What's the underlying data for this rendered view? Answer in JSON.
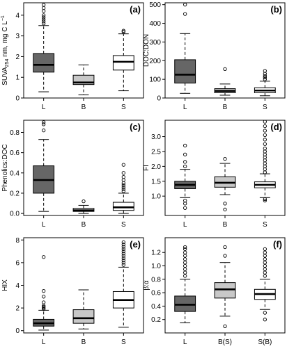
{
  "figure_colors": {
    "L": "#666666",
    "B": "#c8c8c8",
    "S": "#ffffff"
  },
  "chart_data": [
    {
      "type": "box",
      "panel": "(a)",
      "ylabel": "SUVA254 nm, mg C L−1",
      "ylabel_parts": {
        "main": "SUVA",
        "sub": "254",
        "mid": " nm, mg C L",
        "sup": "−1"
      },
      "ylim": [
        0,
        4.6
      ],
      "yticks": [
        0,
        1,
        2,
        3,
        4
      ],
      "grid": false,
      "categories": [
        "L",
        "B",
        "S"
      ],
      "boxes": [
        {
          "name": "L",
          "color": "#666666",
          "lower": 0.3,
          "q1": 1.25,
          "median": 1.6,
          "q3": 2.15,
          "upper": 3.5,
          "outliers": [
            3.6,
            3.7,
            3.8,
            3.9,
            4.0,
            4.2,
            4.35,
            4.5
          ]
        },
        {
          "name": "B",
          "color": "#c8c8c8",
          "lower": 0.15,
          "q1": 0.65,
          "median": 0.75,
          "q3": 1.1,
          "upper": 1.6,
          "outliers": []
        },
        {
          "name": "S",
          "color": "#ffffff",
          "lower": 0.35,
          "q1": 1.35,
          "median": 1.75,
          "q3": 2.05,
          "upper": 3.1,
          "outliers": [
            3.2,
            3.25
          ]
        }
      ]
    },
    {
      "type": "box",
      "panel": "(b)",
      "ylabel": "DOC:DON",
      "ylim": [
        0,
        510
      ],
      "yticks": [
        0,
        100,
        200,
        300,
        400,
        500
      ],
      "grid": false,
      "categories": [
        "L",
        "B",
        "S"
      ],
      "boxes": [
        {
          "name": "L",
          "color": "#666666",
          "lower": 25,
          "q1": 80,
          "median": 125,
          "q3": 205,
          "upper": 345,
          "outliers": [
            450,
            500
          ]
        },
        {
          "name": "B",
          "color": "#c8c8c8",
          "lower": 15,
          "q1": 28,
          "median": 38,
          "q3": 50,
          "upper": 75,
          "outliers": [
            155
          ]
        },
        {
          "name": "S",
          "color": "#ffffff",
          "lower": 12,
          "q1": 28,
          "median": 40,
          "q3": 55,
          "upper": 90,
          "outliers": [
            100,
            110,
            118,
            130,
            145
          ]
        }
      ]
    },
    {
      "type": "box",
      "panel": "(c)",
      "ylabel": "Phenolics:DOC",
      "ylim": [
        -0.02,
        0.92
      ],
      "yticks": [
        0.0,
        0.2,
        0.4,
        0.6,
        0.8
      ],
      "grid": false,
      "categories": [
        "L",
        "B",
        "S"
      ],
      "boxes": [
        {
          "name": "L",
          "color": "#666666",
          "lower": 0.02,
          "q1": 0.2,
          "median": 0.33,
          "q3": 0.47,
          "upper": 0.73,
          "outliers": [
            0.82,
            0.88,
            0.9
          ]
        },
        {
          "name": "B",
          "color": "#c8c8c8",
          "lower": 0.0,
          "q1": 0.02,
          "median": 0.03,
          "q3": 0.05,
          "upper": 0.08,
          "outliers": [
            0.12
          ]
        },
        {
          "name": "S",
          "color": "#ffffff",
          "lower": 0.0,
          "q1": 0.03,
          "median": 0.06,
          "q3": 0.11,
          "upper": 0.2,
          "outliers": [
            0.22,
            0.24,
            0.26,
            0.28,
            0.3,
            0.33,
            0.36,
            0.4,
            0.48
          ]
        }
      ]
    },
    {
      "type": "box",
      "panel": "(d)",
      "ylabel": "FI",
      "ylim": [
        0.35,
        3.55
      ],
      "yticks": [
        1.0,
        1.5,
        2.0,
        2.5,
        3.0
      ],
      "grid": false,
      "categories": [
        "L",
        "B",
        "S"
      ],
      "boxes": [
        {
          "name": "L",
          "color": "#666666",
          "lower": 0.95,
          "q1": 1.25,
          "median": 1.38,
          "q3": 1.5,
          "upper": 1.9,
          "outliers": [
            0.6,
            0.75,
            0.85,
            2.0,
            2.15,
            2.4,
            2.7
          ]
        },
        {
          "name": "B",
          "color": "#c8c8c8",
          "lower": 1.05,
          "q1": 1.3,
          "median": 1.45,
          "q3": 1.65,
          "upper": 2.1,
          "outliers": [
            0.55,
            0.75,
            2.25
          ]
        },
        {
          "name": "S",
          "color": "#ffffff",
          "lower": 0.95,
          "q1": 1.28,
          "median": 1.38,
          "q3": 1.48,
          "upper": 1.75,
          "outliers": [
            0.85,
            0.9,
            1.8,
            1.9,
            2.0,
            2.1,
            2.2,
            2.3,
            2.4,
            2.5,
            2.6,
            2.75,
            2.9,
            3.05,
            3.2,
            3.35,
            3.5
          ]
        }
      ]
    },
    {
      "type": "box",
      "panel": "(e)",
      "ylabel": "HIX",
      "ylim": [
        -0.2,
        8.2
      ],
      "yticks": [
        0,
        2,
        4,
        6,
        8
      ],
      "grid": false,
      "categories": [
        "L",
        "B",
        "S"
      ],
      "boxes": [
        {
          "name": "L",
          "color": "#666666",
          "lower": 0.05,
          "q1": 0.4,
          "median": 0.65,
          "q3": 1.0,
          "upper": 1.8,
          "outliers": [
            1.9,
            2.0,
            2.1,
            2.2,
            2.5,
            3.0,
            3.5,
            6.5
          ]
        },
        {
          "name": "B",
          "color": "#c8c8c8",
          "lower": 0.15,
          "q1": 0.65,
          "median": 1.1,
          "q3": 1.85,
          "upper": 3.6,
          "outliers": []
        },
        {
          "name": "S",
          "color": "#ffffff",
          "lower": 0.3,
          "q1": 2.0,
          "median": 2.7,
          "q3": 3.45,
          "upper": 5.6,
          "outliers": [
            5.8,
            6.0,
            6.2,
            6.4,
            6.6,
            6.8,
            7.0,
            7.2,
            7.4,
            7.6,
            7.8
          ]
        }
      ]
    },
    {
      "type": "box",
      "panel": "(f)",
      "ylabel": "β:α",
      "ylim": [
        0.0,
        1.42
      ],
      "yticks": [
        0.2,
        0.4,
        0.6,
        0.8,
        1.0,
        1.2
      ],
      "grid": false,
      "categories": [
        "L",
        "B(S)",
        "S(B)"
      ],
      "boxes": [
        {
          "name": "L",
          "color": "#666666",
          "lower": 0.15,
          "q1": 0.32,
          "median": 0.42,
          "q3": 0.55,
          "upper": 0.8,
          "outliers": [
            0.85,
            0.9,
            0.95,
            1.0,
            1.05,
            1.1,
            1.15,
            1.2,
            1.25,
            1.28
          ]
        },
        {
          "name": "B(S)",
          "color": "#c8c8c8",
          "lower": 0.25,
          "q1": 0.52,
          "median": 0.65,
          "q3": 0.75,
          "upper": 1.05,
          "outliers": [
            0.1,
            1.15,
            1.28
          ]
        },
        {
          "name": "S(B)",
          "color": "#ffffff",
          "lower": 0.35,
          "q1": 0.5,
          "median": 0.58,
          "q3": 0.65,
          "upper": 0.8,
          "outliers": [
            0.2,
            0.3,
            0.85,
            0.9,
            0.95,
            1.0,
            1.05,
            1.1,
            1.15,
            1.2,
            1.25
          ]
        }
      ]
    }
  ]
}
